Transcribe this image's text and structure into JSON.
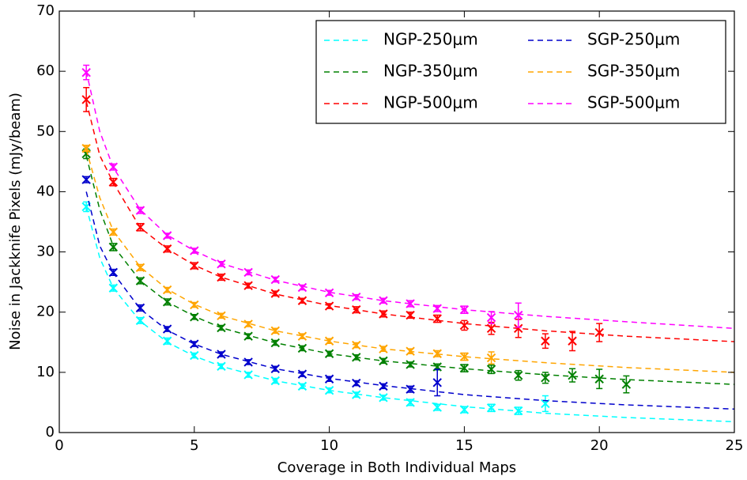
{
  "chart_data": {
    "type": "scatter",
    "x_label": "Coverage in Both Individual Maps",
    "y_label": "Noise in Jackknife Pixels (mJy/beam)",
    "xlim": [
      0,
      25
    ],
    "xticks": [
      0,
      5,
      10,
      15,
      20,
      25
    ],
    "ylim": [
      0,
      70
    ],
    "yticks": [
      0,
      10,
      20,
      30,
      40,
      50,
      60,
      70
    ],
    "grid": false,
    "legend": "upper right",
    "fit_x": [
      1,
      1.5,
      2,
      3,
      4,
      5,
      6,
      8,
      10,
      12,
      15,
      18,
      21,
      25
    ],
    "series": [
      {
        "name": "NGP-250μm",
        "color": "#00ffff",
        "x": [
          1,
          2,
          3,
          4,
          5,
          6,
          7,
          8,
          9,
          10,
          11,
          12,
          13,
          14,
          15,
          16,
          17,
          18
        ],
        "values": [
          37.5,
          24,
          18.6,
          15.2,
          12.8,
          11,
          9.6,
          8.6,
          7.7,
          7.0,
          6.3,
          5.8,
          5.0,
          4.2,
          3.8,
          4.1,
          3.6,
          4.8
        ],
        "errors": [
          0.8,
          0.5,
          0.5,
          0.5,
          0.4,
          0.4,
          0.4,
          0.4,
          0.4,
          0.4,
          0.4,
          0.4,
          0.5,
          0.5,
          0.5,
          0.6,
          0.6,
          1.3
        ],
        "fit_values": [
          37.5,
          29,
          24,
          18.5,
          15,
          12.7,
          11,
          8.6,
          7,
          5.8,
          4.3,
          3.2,
          2.5,
          1.8
        ]
      },
      {
        "name": "NGP-350μm",
        "color": "#008000",
        "x": [
          1,
          2,
          3,
          4,
          5,
          6,
          7,
          8,
          9,
          10,
          11,
          12,
          13,
          14,
          15,
          16,
          17,
          18,
          19,
          20,
          21
        ],
        "values": [
          46.3,
          30.8,
          25.2,
          21.7,
          19.2,
          17.4,
          16,
          14.9,
          14,
          13.1,
          12.5,
          11.9,
          11.3,
          10.9,
          10.7,
          10.5,
          9.5,
          9.1,
          9.5,
          8.9,
          8.0
        ],
        "errors": [
          0.8,
          0.6,
          0.5,
          0.5,
          0.4,
          0.4,
          0.4,
          0.4,
          0.4,
          0.4,
          0.4,
          0.4,
          0.4,
          0.5,
          0.6,
          0.7,
          0.8,
          0.9,
          1.1,
          1.6,
          1.4
        ],
        "fit_values": [
          46,
          37,
          31,
          25.2,
          21.7,
          19.3,
          17.4,
          14.9,
          13.1,
          11.9,
          10.6,
          9.6,
          8.8,
          8.0
        ]
      },
      {
        "name": "NGP-500μm",
        "color": "#ff0000",
        "x": [
          1,
          2,
          3,
          4,
          5,
          6,
          7,
          8,
          9,
          10,
          11,
          12,
          13,
          14,
          15,
          16,
          17,
          18,
          19,
          20
        ],
        "values": [
          55.3,
          41.6,
          34.1,
          30.5,
          27.7,
          25.8,
          24.4,
          23.1,
          21.9,
          21.0,
          20.4,
          19.7,
          19.5,
          18.9,
          17.8,
          17.3,
          17.3,
          15.2,
          15.2,
          16.6
        ],
        "errors": [
          2.0,
          0.6,
          0.6,
          0.5,
          0.5,
          0.5,
          0.4,
          0.4,
          0.4,
          0.4,
          0.5,
          0.5,
          0.5,
          0.6,
          0.8,
          1.0,
          1.5,
          1.2,
          1.6,
          1.5
        ],
        "fit_values": [
          55,
          46,
          41.5,
          34,
          30.5,
          27.8,
          25.8,
          23,
          21.1,
          19.7,
          18.1,
          16.9,
          16,
          15.1
        ]
      },
      {
        "name": "SGP-250μm",
        "color": "#0000cc",
        "x": [
          1,
          2,
          3,
          4,
          5,
          6,
          7,
          8,
          9,
          10,
          11,
          12,
          13,
          14
        ],
        "values": [
          42,
          26.6,
          20.7,
          17.2,
          14.7,
          13,
          11.7,
          10.6,
          9.7,
          8.9,
          8.2,
          7.7,
          7.2,
          8.3
        ],
        "errors": [
          0.5,
          0.5,
          0.5,
          0.4,
          0.4,
          0.4,
          0.4,
          0.4,
          0.4,
          0.4,
          0.4,
          0.4,
          0.5,
          2.2
        ],
        "fit_values": [
          40,
          31,
          26.5,
          20.5,
          17,
          14.7,
          13,
          10.6,
          9,
          7.8,
          6.3,
          5.3,
          4.6,
          3.9
        ]
      },
      {
        "name": "SGP-350μm",
        "color": "#ffa500",
        "x": [
          1,
          2,
          3,
          4,
          5,
          6,
          7,
          8,
          9,
          10,
          11,
          12,
          13,
          14,
          15,
          16
        ],
        "values": [
          47.2,
          33.3,
          27.4,
          23.7,
          21.2,
          19.4,
          18.0,
          16.9,
          16.0,
          15.2,
          14.5,
          13.9,
          13.5,
          13.1,
          12.6,
          12.4
        ],
        "errors": [
          0.5,
          0.5,
          0.5,
          0.4,
          0.4,
          0.4,
          0.4,
          0.4,
          0.4,
          0.4,
          0.4,
          0.4,
          0.4,
          0.5,
          0.6,
          1.0
        ],
        "fit_values": [
          47,
          39,
          33.5,
          27.5,
          23.8,
          21.3,
          19.4,
          16.9,
          15.2,
          13.9,
          12.6,
          11.6,
          10.8,
          10
        ]
      },
      {
        "name": "SGP-500μm",
        "color": "#ff00ff",
        "x": [
          1,
          2,
          3,
          4,
          5,
          6,
          7,
          8,
          9,
          10,
          11,
          12,
          13,
          14,
          15,
          16,
          17
        ],
        "values": [
          59.8,
          44.1,
          36.9,
          32.7,
          30.2,
          28.0,
          26.6,
          25.4,
          24.1,
          23.2,
          22.5,
          21.9,
          21.4,
          20.6,
          20.4,
          19.1,
          19.5
        ],
        "errors": [
          1.2,
          0.5,
          0.5,
          0.4,
          0.4,
          0.4,
          0.4,
          0.4,
          0.4,
          0.4,
          0.4,
          0.4,
          0.5,
          0.5,
          0.6,
          1.0,
          2.0
        ],
        "fit_values": [
          60,
          50,
          44,
          37,
          32.8,
          30.2,
          28.1,
          25.3,
          23.3,
          21.9,
          20.4,
          19.3,
          18.4,
          17.3
        ]
      }
    ]
  }
}
